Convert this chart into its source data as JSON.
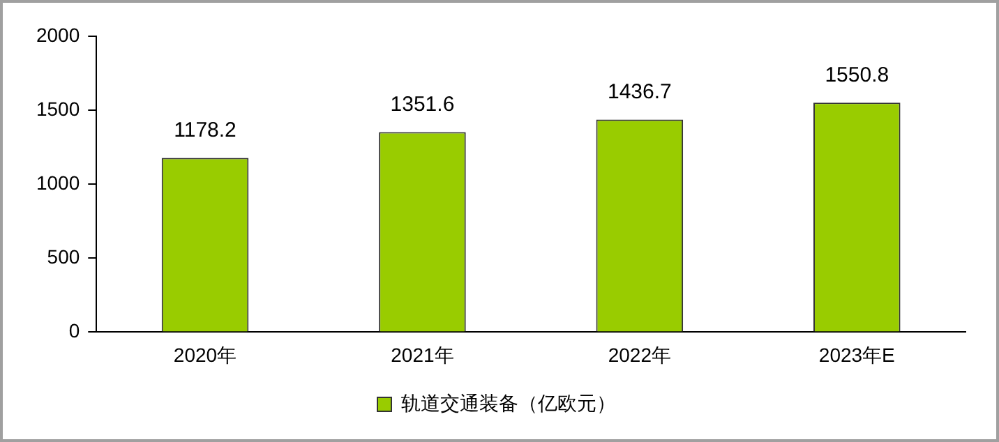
{
  "chart_data": {
    "type": "bar",
    "categories": [
      "2020年",
      "2021年",
      "2022年",
      "2023年E"
    ],
    "series": [
      {
        "name": "轨道交通装备（亿欧元）",
        "color": "#99cc00",
        "values": [
          1178.2,
          1351.6,
          1436.7,
          1550.8
        ]
      }
    ],
    "ylim": [
      0,
      2000
    ],
    "yticks": [
      0,
      500,
      1000,
      1500,
      2000
    ],
    "grid": false,
    "legend": "bottom",
    "data_labels": true
  }
}
